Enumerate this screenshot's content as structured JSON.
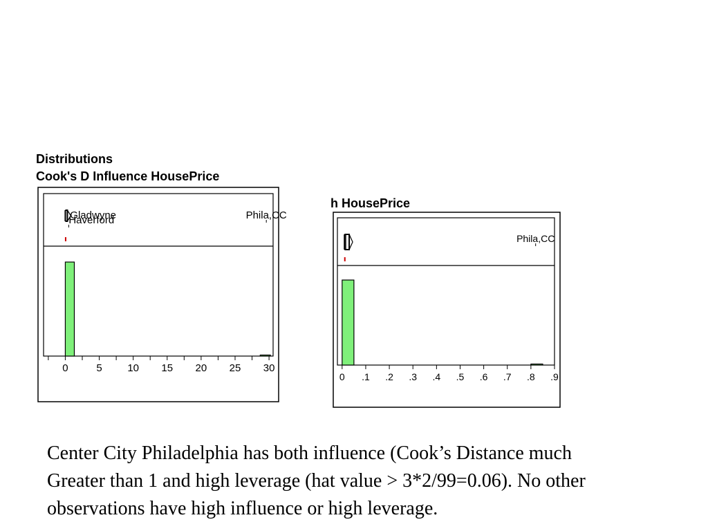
{
  "headings": {
    "line1": "Distributions",
    "line2": "Cook's D Influence HousePrice",
    "line3": "h HousePrice"
  },
  "chart_data": [
    {
      "type": "histogram",
      "title": "Cook's D Influence HousePrice",
      "xlim": [
        -3.2,
        30.6
      ],
      "x_ticks": [
        0,
        5,
        10,
        15,
        20,
        25,
        30
      ],
      "x_tick_labels": [
        "0",
        "5",
        "10",
        "15",
        "20",
        "25",
        "30"
      ],
      "x_minor_step": 2.5,
      "bins": [
        {
          "start": 0,
          "end": 1.33,
          "count": 97
        },
        {
          "start": 28.7,
          "end": 30.2,
          "count": 1
        }
      ],
      "outlier_box": {
        "q1": 0,
        "median": 0.01,
        "q3": 0.05,
        "whisker_hi": 0.6,
        "whisker_lo": 0
      },
      "outlier_labels": [
        {
          "label": "Gladwyne",
          "value": 0.7,
          "line": 1
        },
        {
          "label": "Haverford",
          "value": 0.5,
          "line": 2
        },
        {
          "label": "Phila,CC",
          "value": 29.6,
          "line": 1
        }
      ],
      "point_color": "#cc0000",
      "bar_color": "#7ff07a"
    },
    {
      "type": "histogram",
      "title": "h HousePrice",
      "xlim": [
        -0.02,
        0.9
      ],
      "x_ticks": [
        0,
        0.1,
        0.2,
        0.3,
        0.4,
        0.5,
        0.6,
        0.7,
        0.8,
        0.9
      ],
      "x_tick_labels": [
        "0",
        ".1",
        ".2",
        ".3",
        ".4",
        ".5",
        ".6",
        ".7",
        ".8",
        ".9"
      ],
      "bins": [
        {
          "start": 0,
          "end": 0.05,
          "count": 98
        },
        {
          "start": 0.8,
          "end": 0.85,
          "count": 1
        }
      ],
      "outlier_box": {
        "q1": 0.01,
        "median": 0.015,
        "q3": 0.03,
        "whisker_hi": 0.04,
        "whisker_lo": 0.0
      },
      "outlier_labels": [
        {
          "label": "Phila,CC",
          "value": 0.82,
          "line": 1
        }
      ],
      "point_color": "#cc0000",
      "bar_color": "#7ff07a"
    }
  ],
  "caption": {
    "line1": "Center City Philadelphia has both influence (Cook’s Distance much",
    "line2": "Greater than 1 and high leverage (hat value > 3*2/99=0.06).  No other",
    "line3": "observations have high influence or high leverage."
  }
}
